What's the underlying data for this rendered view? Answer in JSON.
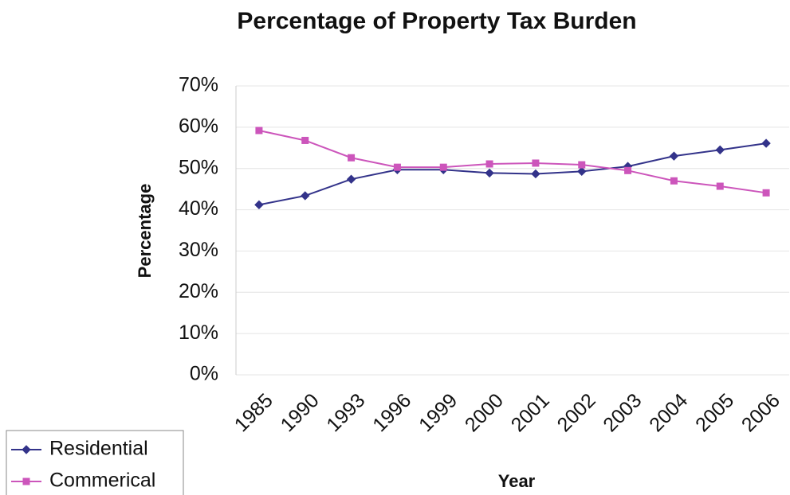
{
  "chart_data": {
    "type": "line",
    "title": "Percentage of Property Tax Burden",
    "x_label": "Year",
    "y_label": "Percentage",
    "categories": [
      "1985",
      "1990",
      "1993",
      "1996",
      "1999",
      "2000",
      "2001",
      "2002",
      "2003",
      "2004",
      "2005",
      "2006"
    ],
    "series": [
      {
        "name": "Residential",
        "color": "#33338a",
        "marker": "diamond",
        "values": [
          41.2,
          43.4,
          47.4,
          49.7,
          49.7,
          48.9,
          48.7,
          49.3,
          50.5,
          53.0,
          54.5,
          56.1
        ]
      },
      {
        "name": "Commerical",
        "color": "#cc55bb",
        "marker": "square",
        "values": [
          59.2,
          56.8,
          52.6,
          50.3,
          50.3,
          51.1,
          51.3,
          50.9,
          49.5,
          47.0,
          45.7,
          44.1
        ]
      }
    ],
    "ylim": [
      0,
      70
    ],
    "yticks": [
      {
        "value": 0,
        "label": "0%"
      },
      {
        "value": 10,
        "label": "10%"
      },
      {
        "value": 20,
        "label": "20%"
      },
      {
        "value": 30,
        "label": "30%"
      },
      {
        "value": 40,
        "label": "40%"
      },
      {
        "value": 50,
        "label": "50%"
      },
      {
        "value": 60,
        "label": "60%"
      },
      {
        "value": 70,
        "label": "70%"
      }
    ],
    "grid": true,
    "legend": "bottom-left"
  }
}
